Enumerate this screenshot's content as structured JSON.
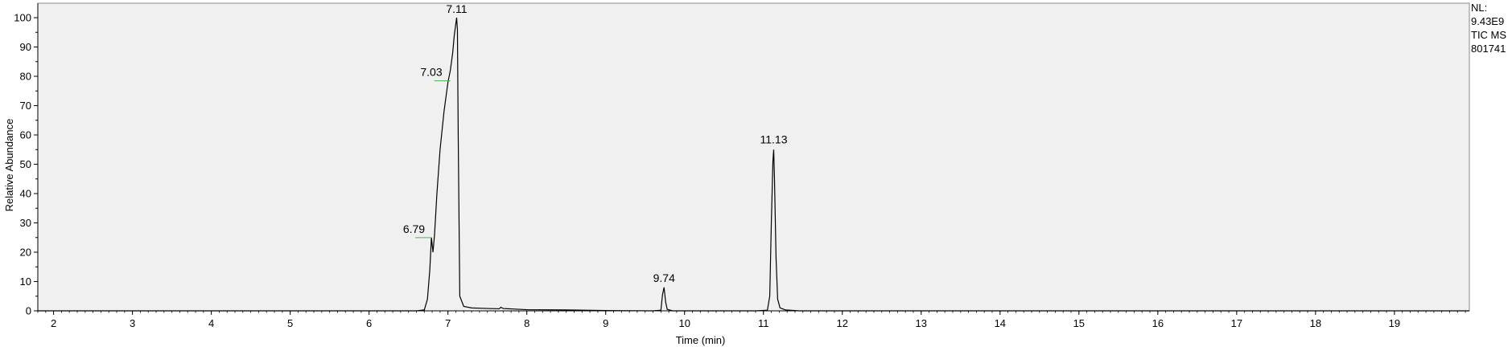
{
  "chart_data": {
    "type": "line",
    "xlabel": "Time (min)",
    "ylabel": "Relative Abundance",
    "xlim": [
      1.8,
      19.95
    ],
    "ylim": [
      0,
      100
    ],
    "x_ticks": [
      "2",
      "3",
      "4",
      "5",
      "6",
      "7",
      "8",
      "9",
      "10",
      "11",
      "12",
      "13",
      "14",
      "15",
      "16",
      "17",
      "18",
      "19"
    ],
    "y_ticks": [
      "0",
      "10",
      "20",
      "30",
      "40",
      "50",
      "60",
      "70",
      "80",
      "90",
      "100"
    ],
    "grid": false,
    "background": "#f0f0f0",
    "line_color": "#000000",
    "peak_labels": [
      {
        "x": 7.11,
        "y": 100,
        "text": "7.11"
      },
      {
        "x": 7.03,
        "y": 79,
        "text": "7.03"
      },
      {
        "x": 6.79,
        "y": 25.5,
        "text": "6.79"
      },
      {
        "x": 9.74,
        "y": 8.2,
        "text": "9.74"
      },
      {
        "x": 11.13,
        "y": 55.5,
        "text": "11.13"
      }
    ],
    "info": [
      "NL:",
      "9.43E9",
      "TIC MS",
      "801741"
    ],
    "series": [
      {
        "x": [
          1.8,
          6.6,
          6.7,
          6.74,
          6.77,
          6.79,
          6.81,
          6.83,
          6.86,
          6.9,
          6.95,
          7.0,
          7.03,
          7.06,
          7.08,
          7.1,
          7.11,
          7.12,
          7.13,
          7.15,
          7.2,
          7.3,
          7.5,
          7.65,
          7.67,
          7.7,
          8.0,
          8.5,
          9.0,
          9.6,
          9.7,
          9.72,
          9.74,
          9.76,
          9.78,
          9.85,
          10.9,
          11.05,
          11.08,
          11.1,
          11.12,
          11.13,
          11.14,
          11.16,
          11.18,
          11.21,
          11.28,
          11.45,
          19.95
        ],
        "y": [
          0,
          0,
          0.3,
          4,
          14,
          25,
          20,
          26,
          40,
          55,
          68,
          78,
          82,
          88,
          94,
          98,
          100,
          96,
          60,
          5,
          1.5,
          1.0,
          0.8,
          0.7,
          1.2,
          0.8,
          0.4,
          0.3,
          0.1,
          0,
          0.2,
          5.5,
          8,
          3,
          0.5,
          0,
          0,
          0.2,
          5,
          30,
          51,
          55,
          45,
          18,
          4,
          1,
          0.3,
          0,
          0
        ]
      }
    ]
  }
}
